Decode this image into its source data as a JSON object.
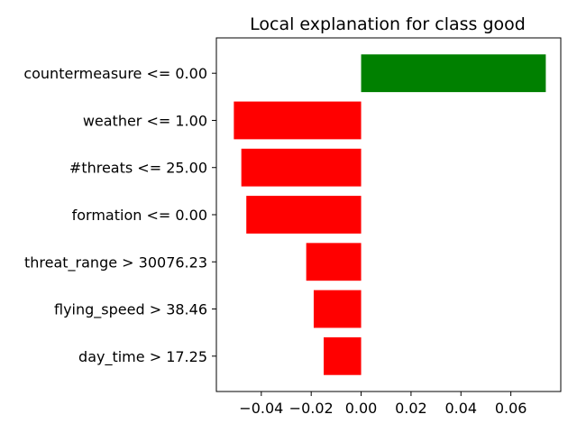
{
  "chart_data": {
    "type": "bar",
    "orientation": "horizontal",
    "title": "Local explanation for class good",
    "xlabel": "",
    "ylabel": "",
    "categories": [
      "countermeasure <= 0.00",
      "weather <= 1.00",
      "#threats <= 25.00",
      "formation <= 0.00",
      "threat_range > 30076.23",
      "flying_speed > 38.46",
      "day_time > 17.25"
    ],
    "values": [
      0.074,
      -0.051,
      -0.048,
      -0.046,
      -0.022,
      -0.019,
      -0.015
    ],
    "xlim": [
      -0.058,
      0.08
    ],
    "xticks": [
      -0.04,
      -0.02,
      0.0,
      0.02,
      0.04,
      0.06
    ],
    "xtick_labels": [
      "−0.04",
      "−0.02",
      "0.00",
      "0.02",
      "0.04",
      "0.06"
    ],
    "colors": {
      "positive": "#008000",
      "negative": "#ff0000"
    },
    "grid": false,
    "legend": "none"
  }
}
